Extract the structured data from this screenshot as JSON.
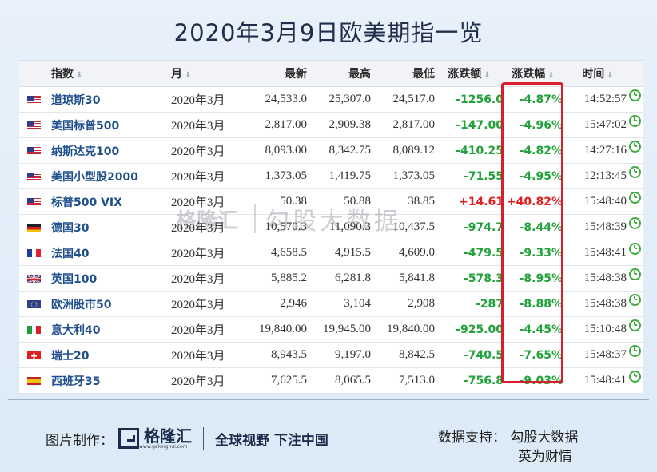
{
  "title": "2020年3月9日欧美期指一览",
  "columns": {
    "name": "指数",
    "month": "月",
    "last": "最新",
    "high": "最高",
    "low": "最低",
    "change": "涨跌额",
    "pct": "涨跌幅",
    "time": "时间"
  },
  "rows": [
    {
      "flag": "us",
      "name": "道琼斯30",
      "month": "2020年3月",
      "last": "24,533.0",
      "high": "25,307.0",
      "low": "24,517.0",
      "change": "-1256.0",
      "pct": "-4.87%",
      "time": "14:52:57",
      "direction": "down"
    },
    {
      "flag": "us",
      "name": "美国标普500",
      "month": "2020年3月",
      "last": "2,817.00",
      "high": "2,909.38",
      "low": "2,817.00",
      "change": "-147.00",
      "pct": "-4.96%",
      "time": "15:47:02",
      "direction": "down"
    },
    {
      "flag": "us",
      "name": "纳斯达克100",
      "month": "2020年3月",
      "last": "8,093.00",
      "high": "8,342.75",
      "low": "8,089.12",
      "change": "-410.25",
      "pct": "-4.82%",
      "time": "14:27:16",
      "direction": "down"
    },
    {
      "flag": "us",
      "name": "美国小型股2000",
      "month": "2020年3月",
      "last": "1,373.05",
      "high": "1,419.75",
      "low": "1,373.05",
      "change": "-71.55",
      "pct": "-4.95%",
      "time": "12:13:45",
      "direction": "down"
    },
    {
      "flag": "us",
      "name": "标普500 VIX",
      "month": "2020年3月",
      "last": "50.38",
      "high": "50.88",
      "low": "38.85",
      "change": "+14.61",
      "pct": "+40.82%",
      "time": "15:48:40",
      "direction": "up"
    },
    {
      "flag": "de",
      "name": "德国30",
      "month": "2020年3月",
      "last": "10,570.3",
      "high": "11,090.3",
      "low": "10,437.5",
      "change": "-974.7",
      "pct": "-8.44%",
      "time": "15:48:39",
      "direction": "down"
    },
    {
      "flag": "fr",
      "name": "法国40",
      "month": "2020年3月",
      "last": "4,658.5",
      "high": "4,915.5",
      "low": "4,609.0",
      "change": "-479.5",
      "pct": "-9.33%",
      "time": "15:48:41",
      "direction": "down"
    },
    {
      "flag": "uk",
      "name": "英国100",
      "month": "2020年3月",
      "last": "5,885.2",
      "high": "6,281.8",
      "low": "5,841.8",
      "change": "-578.3",
      "pct": "-8.95%",
      "time": "15:48:38",
      "direction": "down"
    },
    {
      "flag": "eu",
      "name": "欧洲股市50",
      "month": "2020年3月",
      "last": "2,946",
      "high": "3,104",
      "low": "2,908",
      "change": "-287",
      "pct": "-8.88%",
      "time": "15:48:38",
      "direction": "down"
    },
    {
      "flag": "it",
      "name": "意大利40",
      "month": "2020年3月",
      "last": "19,840.00",
      "high": "19,945.00",
      "low": "19,840.00",
      "change": "-925.00",
      "pct": "-4.45%",
      "time": "15:10:48",
      "direction": "down"
    },
    {
      "flag": "ch",
      "name": "瑞士20",
      "month": "2020年3月",
      "last": "8,943.5",
      "high": "9,197.0",
      "low": "8,842.5",
      "change": "-740.5",
      "pct": "-7.65%",
      "time": "15:48:37",
      "direction": "down"
    },
    {
      "flag": "es",
      "name": "西班牙35",
      "month": "2020年3月",
      "last": "7,625.5",
      "high": "8,065.5",
      "low": "7,513.0",
      "change": "-756.8",
      "pct": "-9.03%",
      "time": "15:48:41",
      "direction": "down"
    }
  ],
  "watermark": {
    "logo_text": "格隆汇",
    "logo_url_text": "www.gelonghui.com",
    "text": "勾股大数据"
  },
  "footer": {
    "made_by_label": "图片制作：",
    "logo_name": "格隆汇",
    "logo_url": "www.gelonghui.com",
    "slogan": "全球视野 下注中国",
    "data_support_label": "数据支持：",
    "data_source_1": "勾股大数据",
    "data_source_2": "英为财情"
  },
  "colors": {
    "down": "#22a23a",
    "up": "#e02020",
    "highlight_border": "#d81e2c",
    "name_link": "#1e4f8c"
  }
}
